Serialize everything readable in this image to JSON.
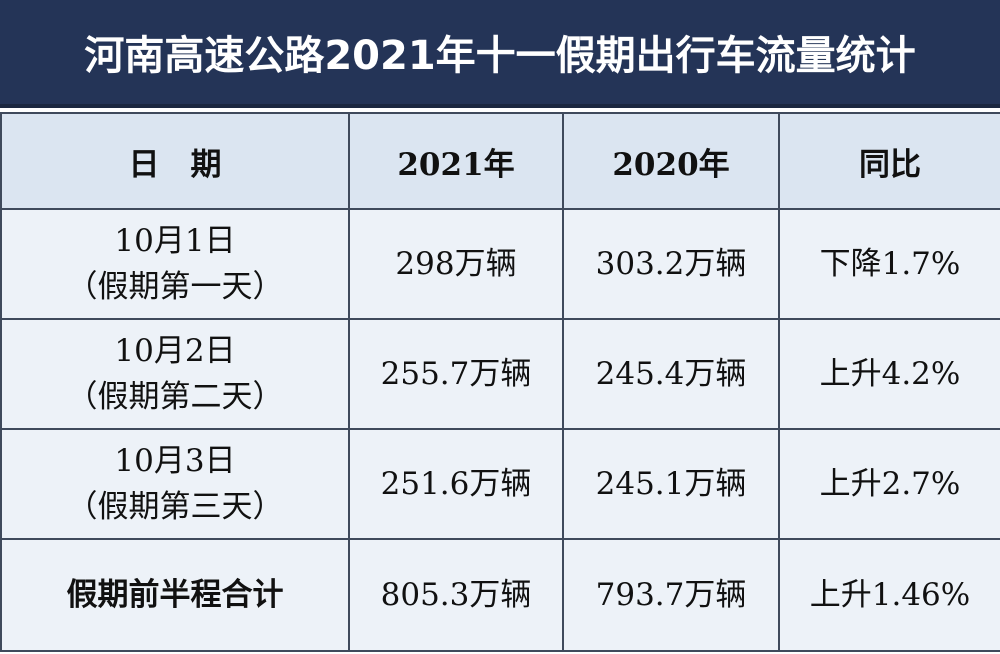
{
  "header": {
    "title": "河南高速公路2021年十一假期出行车流量统计"
  },
  "table": {
    "columns": [
      "日　期",
      "2021年",
      "2020年",
      "同比"
    ],
    "rows": [
      [
        [
          "10月1日",
          "（假期第一天）"
        ],
        "298万辆",
        "303.2万辆",
        "下降1.7%"
      ],
      [
        [
          "10月2日",
          "（假期第二天）"
        ],
        "255.7万辆",
        "245.4万辆",
        "上升4.2%"
      ],
      [
        [
          "10月3日",
          "（假期第三天）"
        ],
        "251.6万辆",
        "245.1万辆",
        "上升2.7%"
      ],
      [
        [
          "假期前半程合计"
        ],
        "805.3万辆",
        "793.7万辆",
        "上升1.46%"
      ]
    ]
  }
}
